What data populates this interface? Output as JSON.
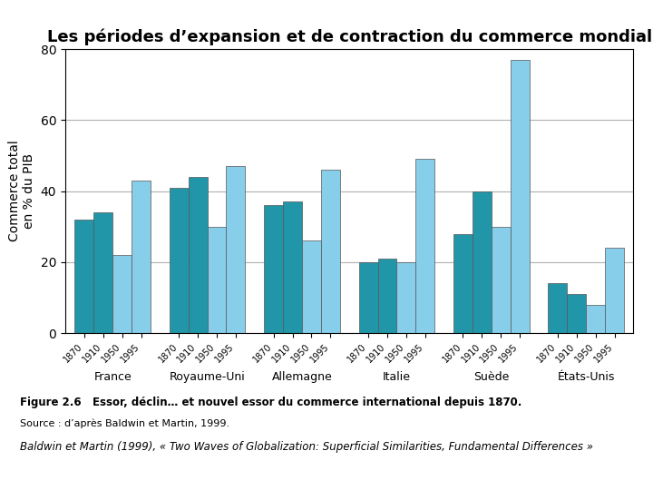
{
  "chart_data": {
    "type": "bar",
    "title": "Les périodes d’expansion et de contraction du commerce mondial",
    "ylabel": "Commerce total\nen % du PIB",
    "categories": [
      "France",
      "Royaume-Uni",
      "Allemagne",
      "Italie",
      "Suède",
      "États-Unis"
    ],
    "series": [
      {
        "name": "1870",
        "color": "#2196a8",
        "values": [
          32,
          41,
          36,
          20,
          28,
          14
        ]
      },
      {
        "name": "1910",
        "color": "#2196a8",
        "values": [
          34,
          44,
          37,
          21,
          40,
          11
        ]
      },
      {
        "name": "1950",
        "color": "#87ceeb",
        "values": [
          22,
          30,
          26,
          20,
          30,
          8
        ]
      },
      {
        "name": "1995",
        "color": "#87ceeb",
        "values": [
          43,
          47,
          46,
          49,
          77,
          24
        ]
      }
    ],
    "ylim": [
      0,
      80
    ],
    "yticks": [
      0,
      20,
      40,
      60,
      80
    ],
    "grid": true,
    "annotations": [
      "Figure 2.6   Essor, déclin… et nouvel essor du commerce international depuis 1870.",
      "Source : d’après Baldwin et Martin, 1999.",
      "Baldwin et Martin (1999), « Two Waves of Globalization: Superficial Similarities, Fundamental Differences »"
    ]
  }
}
